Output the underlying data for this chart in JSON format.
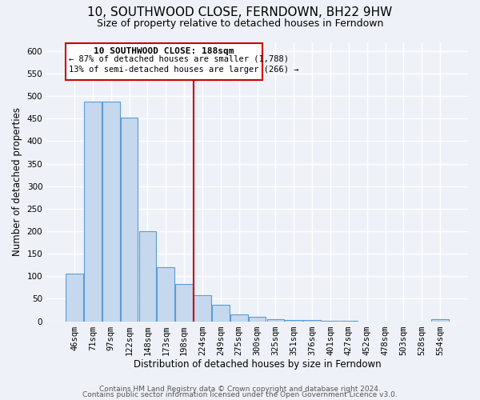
{
  "title": "10, SOUTHWOOD CLOSE, FERNDOWN, BH22 9HW",
  "subtitle": "Size of property relative to detached houses in Ferndown",
  "xlabel": "Distribution of detached houses by size in Ferndown",
  "ylabel": "Number of detached properties",
  "categories": [
    "46sqm",
    "71sqm",
    "97sqm",
    "122sqm",
    "148sqm",
    "173sqm",
    "198sqm",
    "224sqm",
    "249sqm",
    "275sqm",
    "300sqm",
    "325sqm",
    "351sqm",
    "376sqm",
    "401sqm",
    "427sqm",
    "452sqm",
    "478sqm",
    "503sqm",
    "528sqm",
    "554sqm"
  ],
  "values": [
    105,
    487,
    487,
    452,
    200,
    120,
    82,
    57,
    37,
    15,
    10,
    5,
    3,
    2,
    1,
    1,
    0,
    0,
    0,
    0,
    5
  ],
  "bar_color": "#c5d8ed",
  "bar_edge_color": "#5b9bd5",
  "ref_line_label": "10 SOUTHWOOD CLOSE: 188sqm",
  "annotation_line1": "← 87% of detached houses are smaller (1,788)",
  "annotation_line2": "13% of semi-detached houses are larger (266) →",
  "annotation_box_edge": "#cc0000",
  "ref_line_color": "#cc0000",
  "ref_line_index": 6.5,
  "ylim": [
    0,
    620
  ],
  "yticks": [
    0,
    50,
    100,
    150,
    200,
    250,
    300,
    350,
    400,
    450,
    500,
    550,
    600
  ],
  "footer_line1": "Contains HM Land Registry data © Crown copyright and database right 2024.",
  "footer_line2": "Contains public sector information licensed under the Open Government Licence v3.0.",
  "background_color": "#eef2f8",
  "grid_color": "#ffffff",
  "title_fontsize": 11,
  "subtitle_fontsize": 9,
  "axis_label_fontsize": 8.5,
  "tick_fontsize": 7.5,
  "annotation_fontsize": 8,
  "footer_fontsize": 6.5
}
